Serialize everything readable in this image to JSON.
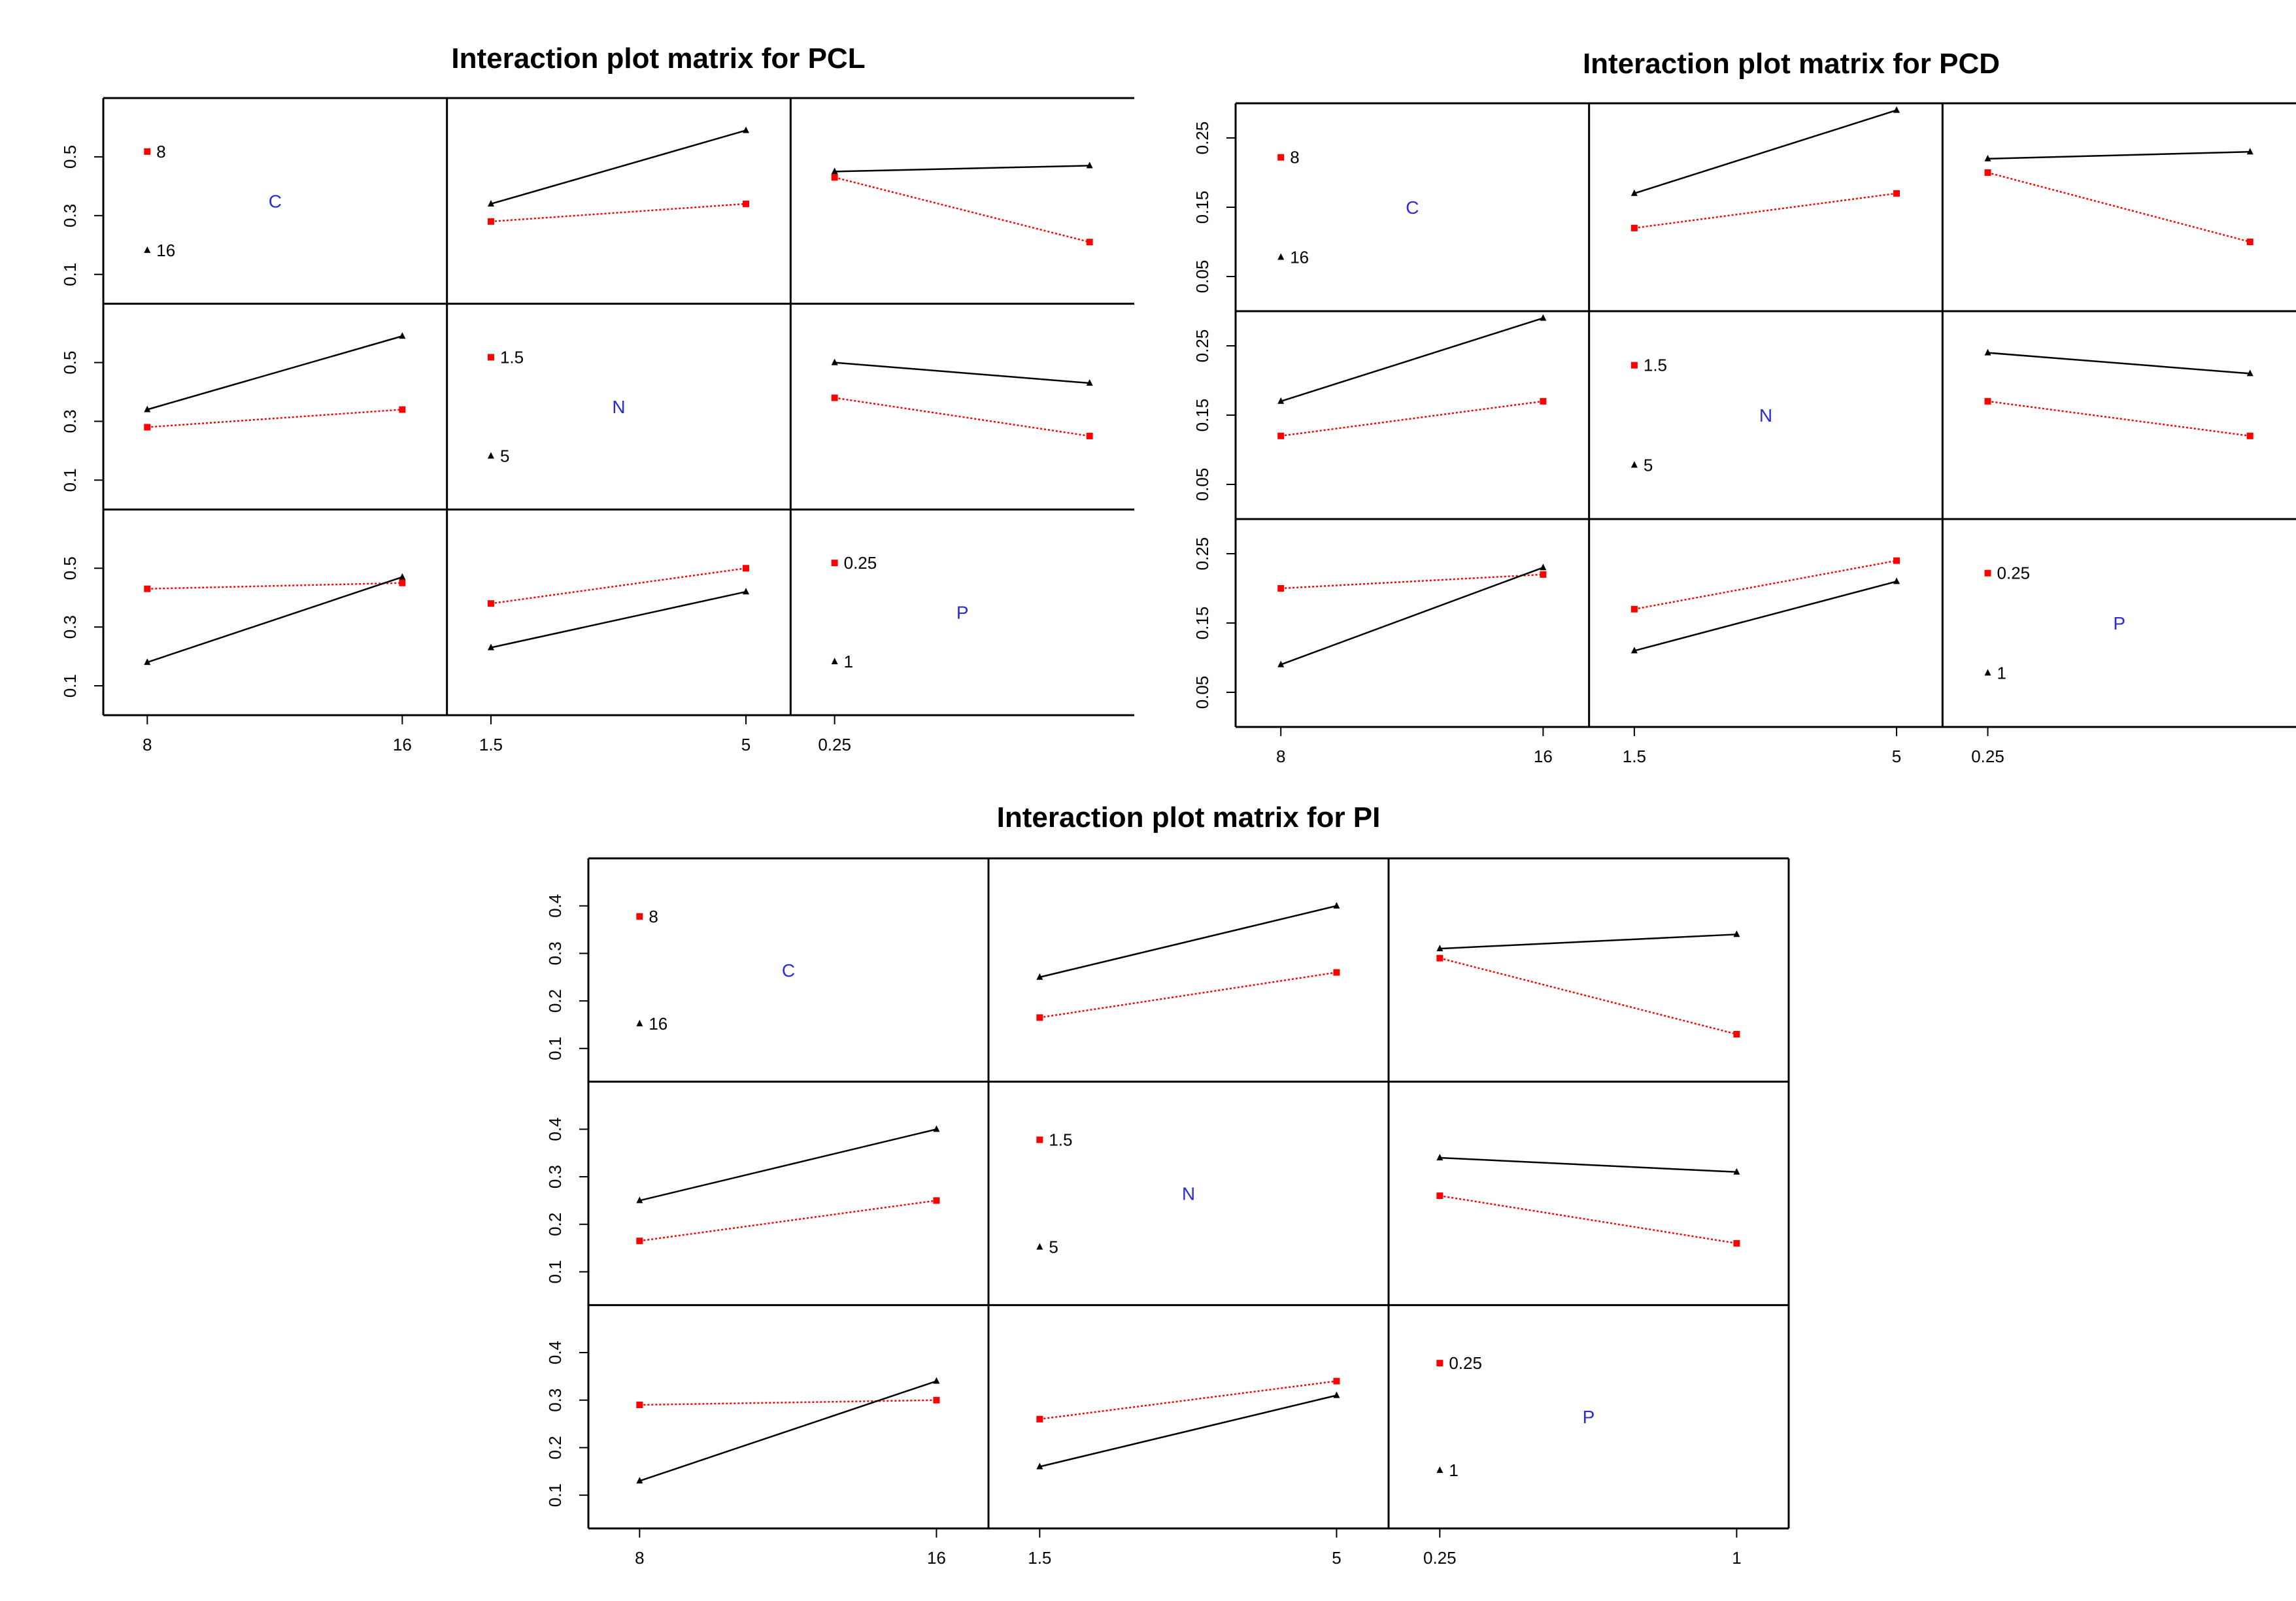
{
  "colors": {
    "series_a": "#ff0000",
    "series_b": "#000000",
    "label": "#2b2bd9",
    "frame": "#000000",
    "text": "#000000"
  },
  "chart_data": [
    {
      "type": "line",
      "title": "Interaction plot matrix for PCL",
      "ylim": [
        0,
        0.7
      ],
      "yticks": [
        "0.1",
        "0.3",
        "0.5"
      ],
      "yticks_values": [
        0.1,
        0.3,
        0.5
      ],
      "factors": [
        {
          "name": "C",
          "levels": [
            "8",
            "16"
          ],
          "tick_labels": [
            "8",
            "16"
          ]
        },
        {
          "name": "N",
          "levels": [
            "1.5",
            "5"
          ],
          "tick_labels": [
            "1.5",
            "5"
          ]
        },
        {
          "name": "P",
          "levels": [
            "0.25",
            "1"
          ],
          "tick_labels": [
            "0.25"
          ]
        }
      ],
      "cells": [
        {
          "row": 0,
          "col": 1,
          "series": [
            {
              "name": "8",
              "values": [
                0.28,
                0.34
              ]
            },
            {
              "name": "16",
              "values": [
                0.34,
                0.59
              ]
            }
          ]
        },
        {
          "row": 0,
          "col": 2,
          "series": [
            {
              "name": "8",
              "values": [
                0.43,
                0.21
              ]
            },
            {
              "name": "16",
              "values": [
                0.45,
                0.47
              ]
            }
          ]
        },
        {
          "row": 1,
          "col": 0,
          "series": [
            {
              "name": "1.5",
              "values": [
                0.28,
                0.34
              ]
            },
            {
              "name": "5",
              "values": [
                0.34,
                0.59
              ]
            }
          ]
        },
        {
          "row": 1,
          "col": 2,
          "series": [
            {
              "name": "1.5",
              "values": [
                0.38,
                0.25
              ]
            },
            {
              "name": "5",
              "values": [
                0.5,
                0.43
              ]
            }
          ]
        },
        {
          "row": 2,
          "col": 0,
          "series": [
            {
              "name": "0.25",
              "values": [
                0.43,
                0.45
              ]
            },
            {
              "name": "1",
              "values": [
                0.18,
                0.47
              ]
            }
          ]
        },
        {
          "row": 2,
          "col": 1,
          "series": [
            {
              "name": "0.25",
              "values": [
                0.38,
                0.5
              ]
            },
            {
              "name": "1",
              "values": [
                0.23,
                0.42
              ]
            }
          ]
        }
      ]
    },
    {
      "type": "line",
      "title": "Interaction plot matrix for PCD",
      "ylim": [
        0,
        0.3
      ],
      "yticks": [
        "0.05",
        "0.15",
        "0.25"
      ],
      "yticks_values": [
        0.05,
        0.15,
        0.25
      ],
      "factors": [
        {
          "name": "C",
          "levels": [
            "8",
            "16"
          ],
          "tick_labels": [
            "8",
            "16"
          ]
        },
        {
          "name": "N",
          "levels": [
            "1.5",
            "5"
          ],
          "tick_labels": [
            "1.5",
            "5"
          ]
        },
        {
          "name": "P",
          "levels": [
            "0.25",
            "1"
          ],
          "tick_labels": [
            "0.25"
          ]
        }
      ],
      "cells": [
        {
          "row": 0,
          "col": 1,
          "series": [
            {
              "name": "8",
              "values": [
                0.12,
                0.17
              ]
            },
            {
              "name": "16",
              "values": [
                0.17,
                0.29
              ]
            }
          ]
        },
        {
          "row": 0,
          "col": 2,
          "series": [
            {
              "name": "8",
              "values": [
                0.2,
                0.1
              ]
            },
            {
              "name": "16",
              "values": [
                0.22,
                0.23
              ]
            }
          ]
        },
        {
          "row": 1,
          "col": 0,
          "series": [
            {
              "name": "1.5",
              "values": [
                0.12,
                0.17
              ]
            },
            {
              "name": "5",
              "values": [
                0.17,
                0.29
              ]
            }
          ]
        },
        {
          "row": 1,
          "col": 2,
          "series": [
            {
              "name": "1.5",
              "values": [
                0.17,
                0.12
              ]
            },
            {
              "name": "5",
              "values": [
                0.24,
                0.21
              ]
            }
          ]
        },
        {
          "row": 2,
          "col": 0,
          "series": [
            {
              "name": "0.25",
              "values": [
                0.2,
                0.22
              ]
            },
            {
              "name": "1",
              "values": [
                0.09,
                0.23
              ]
            }
          ]
        },
        {
          "row": 2,
          "col": 1,
          "series": [
            {
              "name": "0.25",
              "values": [
                0.17,
                0.24
              ]
            },
            {
              "name": "1",
              "values": [
                0.11,
                0.21
              ]
            }
          ]
        }
      ]
    },
    {
      "type": "line",
      "title": "Interaction plot matrix for PI",
      "ylim": [
        0.03,
        0.5
      ],
      "yticks": [
        "0.1",
        "0.2",
        "0.3",
        "0.4"
      ],
      "yticks_values": [
        0.1,
        0.2,
        0.3,
        0.4
      ],
      "factors": [
        {
          "name": "C",
          "levels": [
            "8",
            "16"
          ],
          "tick_labels": [
            "8",
            "16"
          ]
        },
        {
          "name": "N",
          "levels": [
            "1.5",
            "5"
          ],
          "tick_labels": [
            "1.5",
            "5"
          ]
        },
        {
          "name": "P",
          "levels": [
            "0.25",
            "1"
          ],
          "tick_labels": [
            "0.25",
            "1"
          ]
        }
      ],
      "cells": [
        {
          "row": 0,
          "col": 1,
          "series": [
            {
              "name": "8",
              "values": [
                0.165,
                0.26
              ]
            },
            {
              "name": "16",
              "values": [
                0.25,
                0.4
              ]
            }
          ]
        },
        {
          "row": 0,
          "col": 2,
          "series": [
            {
              "name": "8",
              "values": [
                0.29,
                0.13
              ]
            },
            {
              "name": "16",
              "values": [
                0.31,
                0.34
              ]
            }
          ]
        },
        {
          "row": 1,
          "col": 0,
          "series": [
            {
              "name": "1.5",
              "values": [
                0.165,
                0.25
              ]
            },
            {
              "name": "5",
              "values": [
                0.25,
                0.4
              ]
            }
          ]
        },
        {
          "row": 1,
          "col": 2,
          "series": [
            {
              "name": "1.5",
              "values": [
                0.26,
                0.16
              ]
            },
            {
              "name": "5",
              "values": [
                0.34,
                0.31
              ]
            }
          ]
        },
        {
          "row": 2,
          "col": 0,
          "series": [
            {
              "name": "0.25",
              "values": [
                0.29,
                0.3
              ]
            },
            {
              "name": "1",
              "values": [
                0.13,
                0.34
              ]
            }
          ]
        },
        {
          "row": 2,
          "col": 1,
          "series": [
            {
              "name": "0.25",
              "values": [
                0.26,
                0.34
              ]
            },
            {
              "name": "1",
              "values": [
                0.16,
                0.31
              ]
            }
          ]
        }
      ]
    }
  ]
}
